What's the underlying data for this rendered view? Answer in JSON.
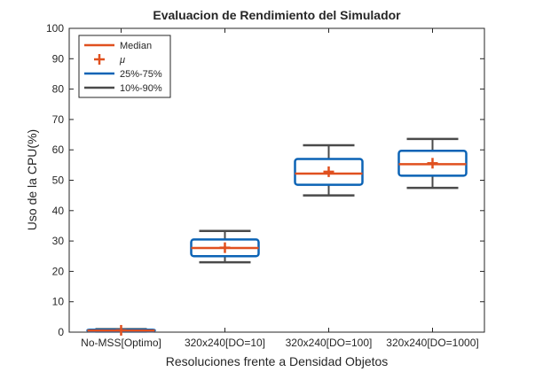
{
  "chart_data": {
    "type": "box",
    "title": "Evaluacion de Rendimiento del Simulador",
    "xlabel": "Resoluciones frente a Densidad Objetos",
    "ylabel": "Uso de la CPU(%)",
    "ylim": [
      0,
      100
    ],
    "yticks": [
      "0",
      "10",
      "20",
      "30",
      "40",
      "50",
      "60",
      "70",
      "80",
      "90",
      "100"
    ],
    "categories": [
      "No-MSS[Optimo]",
      "320x240[DO=10]",
      "320x240[DO=100]",
      "320x240[DO=1000]"
    ],
    "boxes": [
      {
        "p10": 0.2,
        "q25": 0.3,
        "median": 0.5,
        "mean": 0.6,
        "q75": 0.8,
        "p90": 1.0
      },
      {
        "p10": 23,
        "q25": 25,
        "median": 27.7,
        "mean": 27.8,
        "q75": 30.5,
        "p90": 33.3
      },
      {
        "p10": 45,
        "q25": 48.5,
        "median": 52.2,
        "mean": 52.8,
        "q75": 57,
        "p90": 61.5
      },
      {
        "p10": 47.5,
        "q25": 51.5,
        "median": 55.3,
        "mean": 55.6,
        "q75": 59.7,
        "p90": 63.6
      }
    ],
    "grid": false,
    "legend": {
      "placement": "top-left",
      "entries": [
        {
          "label": "Median",
          "kind": "line",
          "color": "#e0501f"
        },
        {
          "label": "μ",
          "kind": "plus",
          "color": "#e0501f"
        },
        {
          "label": "25%-75%",
          "kind": "line",
          "color": "#0b63b5"
        },
        {
          "label": "10%-90%",
          "kind": "line",
          "color": "#4a4a4a"
        }
      ]
    },
    "colors": {
      "median": "#e0501f",
      "mean": "#e0501f",
      "box": "#0b63b5",
      "whisker": "#4a4a4a",
      "axis": "#262626"
    }
  }
}
